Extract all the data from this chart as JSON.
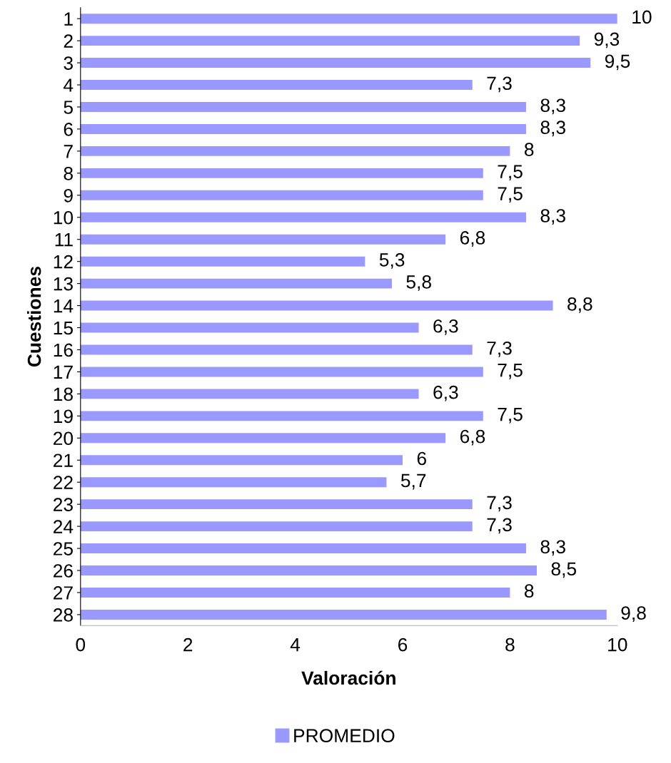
{
  "chart_data": {
    "type": "bar",
    "orientation": "horizontal",
    "xlabel": "Valoración",
    "ylabel": "Cuestiones",
    "categories": [
      "1",
      "2",
      "3",
      "4",
      "5",
      "6",
      "7",
      "8",
      "9",
      "10",
      "11",
      "12",
      "13",
      "14",
      "15",
      "16",
      "17",
      "18",
      "19",
      "20",
      "21",
      "22",
      "23",
      "24",
      "25",
      "26",
      "27",
      "28"
    ],
    "series": [
      {
        "name": "PROMEDIO",
        "color": "#9999ff",
        "values": [
          10,
          9.3,
          9.5,
          7.3,
          8.3,
          8.3,
          8,
          7.5,
          7.5,
          8.3,
          6.8,
          5.3,
          5.8,
          8.8,
          6.3,
          7.3,
          7.5,
          6.3,
          7.5,
          6.8,
          6,
          5.7,
          7.3,
          7.3,
          8.3,
          8.5,
          8,
          9.8
        ],
        "value_labels": [
          "10",
          "9,3",
          "9,5",
          "7,3",
          "8,3",
          "8,3",
          "8",
          "7,5",
          "7,5",
          "8,3",
          "6,8",
          "5,3",
          "5,8",
          "8,8",
          "6,3",
          "7,3",
          "7,5",
          "6,3",
          "7,5",
          "6,8",
          "6",
          "5,7",
          "7,3",
          "7,3",
          "8,3",
          "8,5",
          "8",
          "9,8"
        ]
      }
    ],
    "xlim": [
      0,
      10
    ],
    "xticks": [
      0,
      2,
      4,
      6,
      8,
      10
    ],
    "grid": false,
    "legend": "bottom"
  }
}
